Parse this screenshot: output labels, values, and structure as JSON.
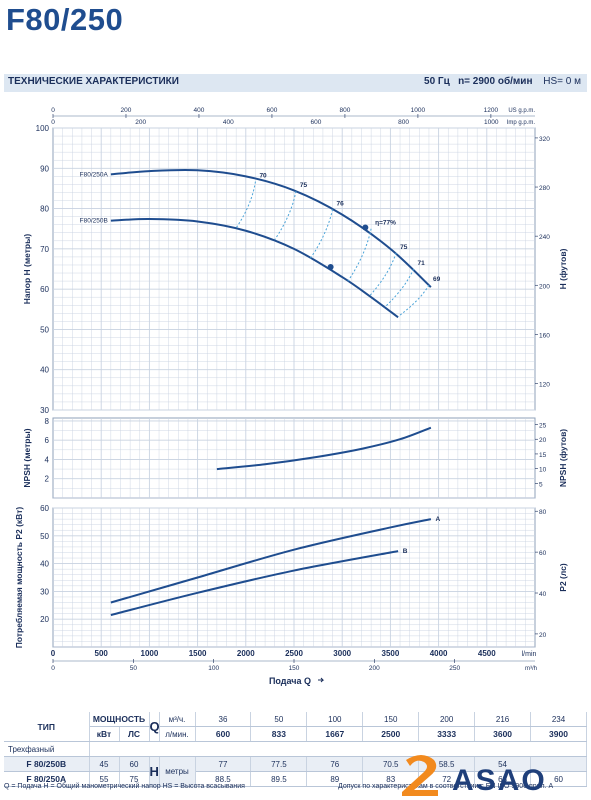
{
  "title": "F80/250",
  "header": {
    "section_title": "ТЕХНИЧЕСКИЕ ХАРАКТЕРИСТИКИ",
    "frequency": "50 Гц",
    "speed": "n= 2900 об/мин",
    "hs": "HS= 0 м"
  },
  "top_axes": {
    "gpm_unit": "US g.p.m.",
    "gpm_ticks": [
      "0",
      "200",
      "400",
      "600",
      "800",
      "1000",
      "1200"
    ],
    "imp_unit": "Imp g.p.m.",
    "imp_ticks": [
      "0",
      "200",
      "400",
      "600",
      "800",
      "1000"
    ]
  },
  "bottom_axes": {
    "lmin_unit": "l/min",
    "lmin_ticks": [
      "0",
      "500",
      "1000",
      "1500",
      "2000",
      "2500",
      "3000",
      "3500",
      "4000",
      "4500"
    ],
    "m3h_unit": "m³/h",
    "m3h_ticks": [
      "0",
      "50",
      "100",
      "150",
      "200",
      "250"
    ],
    "xlabel": "Подача Q"
  },
  "chart_data": [
    {
      "type": "line",
      "name": "head",
      "ylabel": "Напор H (метры)",
      "y2label": "H (футов)",
      "ylim": [
        30,
        100
      ],
      "xlim": [
        0,
        5000
      ],
      "yticks": [
        "30",
        "40",
        "50",
        "60",
        "70",
        "80",
        "90",
        "100"
      ],
      "y2ticks": [
        "120",
        "160",
        "200",
        "240",
        "280",
        "320"
      ],
      "series": [
        {
          "name": "F80/250A",
          "x": [
            600,
            1000,
            1500,
            2000,
            2500,
            3000,
            3500,
            3920
          ],
          "y": [
            88.5,
            89.3,
            89.5,
            88,
            84.5,
            78.5,
            70,
            60.5
          ]
        },
        {
          "name": "F80/250B",
          "x": [
            600,
            1000,
            1500,
            2000,
            2500,
            3000,
            3300,
            3580
          ],
          "y": [
            77,
            77.4,
            76.8,
            74.5,
            70,
            63,
            58,
            53
          ]
        }
      ],
      "efficiency_labels": [
        "70",
        "75",
        "76",
        "η=77%",
        "75",
        "71",
        "69"
      ],
      "efficiency_arcs": [
        {
          "xa": 2100,
          "ya": 86.7,
          "xb": 1900,
          "yb": 75.2
        },
        {
          "xa": 2520,
          "ya": 84.3,
          "xb": 2300,
          "yb": 72.3
        },
        {
          "xa": 2900,
          "ya": 79.8,
          "xb": 2660,
          "yb": 67.3
        },
        {
          "xa": 3300,
          "ya": 75.0,
          "xb": 3060,
          "yb": 62.0
        },
        {
          "xa": 3560,
          "ya": 69.0,
          "xb": 3280,
          "yb": 58.2
        },
        {
          "xa": 3740,
          "ya": 65.0,
          "xb": 3440,
          "yb": 55.5
        },
        {
          "xa": 3900,
          "ya": 61.0,
          "xb": 3580,
          "yb": 53.2
        }
      ],
      "best_points": [
        {
          "x": 3240,
          "y": 75.3
        },
        {
          "x": 2880,
          "y": 65.5
        }
      ]
    },
    {
      "type": "line",
      "name": "npsh",
      "ylabel": "NPSH (метры)",
      "y2label": "NPSH (футов)",
      "ylim": [
        0,
        8.3
      ],
      "xlim": [
        0,
        5000
      ],
      "yticks": [
        "2",
        "4",
        "6",
        "8"
      ],
      "y2ticks": [
        "5",
        "10",
        "15",
        "20",
        "25"
      ],
      "series": [
        {
          "name": "NPSH",
          "x": [
            1700,
            2200,
            2700,
            3200,
            3600,
            3920
          ],
          "y": [
            3,
            3.5,
            4.2,
            5.1,
            6.1,
            7.3
          ]
        }
      ]
    },
    {
      "type": "line",
      "name": "power",
      "ylabel": "Потребляемая мощность P2 (кВт)",
      "y2label": "P2 (лс)",
      "ylim": [
        10,
        60
      ],
      "xlim": [
        0,
        5000
      ],
      "yticks": [
        "20",
        "30",
        "40",
        "50",
        "60"
      ],
      "y2ticks": [
        "20",
        "40",
        "60",
        "80"
      ],
      "series": [
        {
          "name": "A",
          "x": [
            600,
            1500,
            2500,
            3500,
            3920
          ],
          "y": [
            26,
            35,
            45,
            53,
            56
          ]
        },
        {
          "name": "B",
          "x": [
            600,
            1500,
            2500,
            3580
          ],
          "y": [
            21.5,
            29.5,
            37.5,
            44.5
          ]
        }
      ]
    }
  ],
  "table": {
    "col_type": "ТИП",
    "col_power": "МОЩНОСТЬ",
    "kw": "кВт",
    "hp": "ЛС",
    "q_letter": "Q",
    "h_letter": "H",
    "unit_m3h": "м³/ч.",
    "unit_lmin": "л/мин.",
    "unit_m": "метры",
    "mode_label": "Трехфазный",
    "q_m3h": [
      "36",
      "50",
      "100",
      "150",
      "200",
      "216",
      "234"
    ],
    "q_lmin": [
      "600",
      "833",
      "1667",
      "2500",
      "3333",
      "3600",
      "3900"
    ],
    "rows": [
      {
        "model": "F 80/250B",
        "kw": "45",
        "hp": "60",
        "h": [
          "77",
          "77.5",
          "76",
          "70.5",
          "58.5",
          "54",
          ""
        ]
      },
      {
        "model": "F 80/250A",
        "kw": "55",
        "hp": "75",
        "h": [
          "88.5",
          "89.5",
          "89",
          "83",
          "72",
          "68",
          "60"
        ]
      }
    ]
  },
  "footnote": "Q = Подача  H = Общий манометрический напор  HS = Высота всасывания",
  "footnote_right": "Допуск по характеристикам в соответствии с EN ISO 9906 прил. A",
  "logo_text": "ASAO"
}
